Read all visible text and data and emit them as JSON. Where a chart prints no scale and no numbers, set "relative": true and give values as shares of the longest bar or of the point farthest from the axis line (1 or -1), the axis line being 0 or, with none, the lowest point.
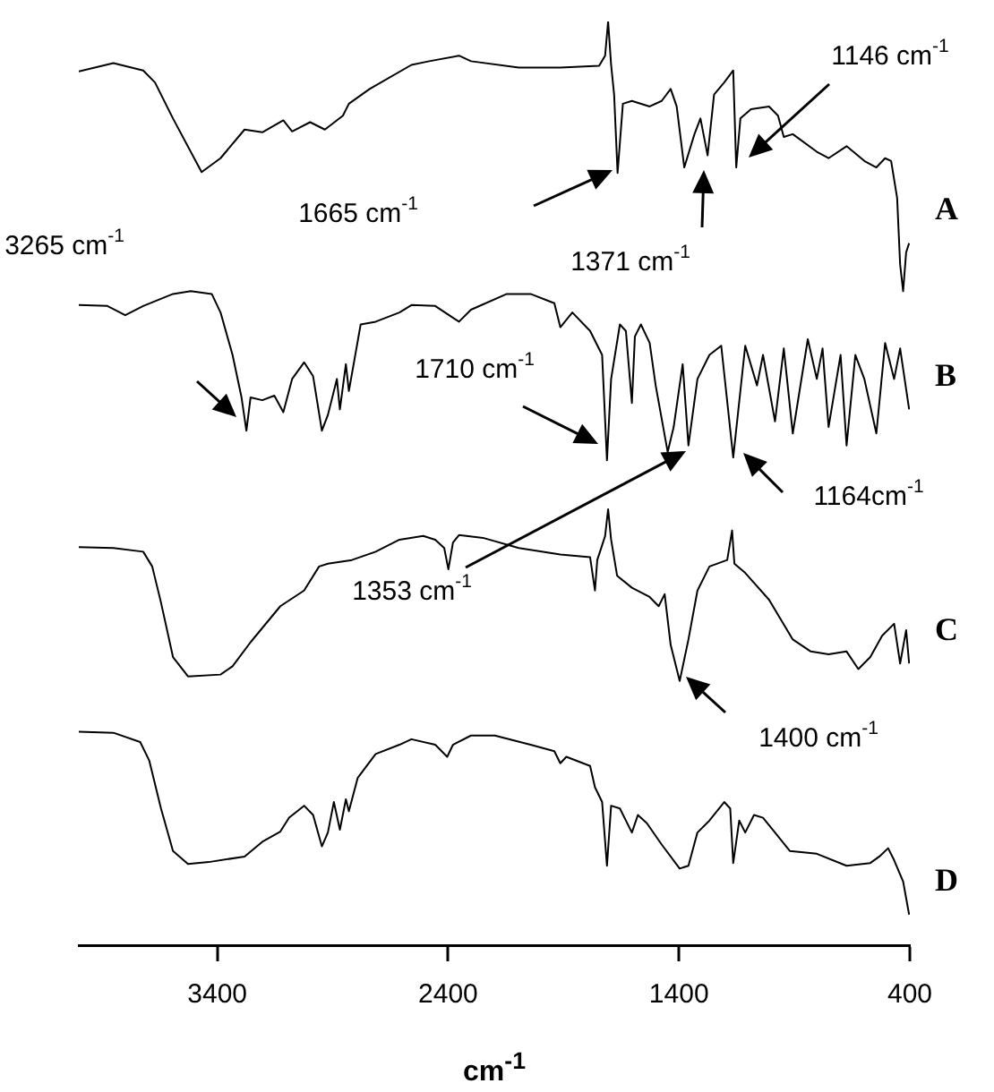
{
  "chart_data": {
    "type": "line",
    "xlabel": "cm$^{-1}$",
    "relative": true,
    "xlim": [
      4000,
      400
    ],
    "xticks": [
      3400,
      2400,
      1400,
      400
    ],
    "tick_labels": "x",
    "marker": "none",
    "line_style": "solid",
    "series": [
      {
        "name": "A",
        "color": "#000000",
        "x": [
          4000,
          3850,
          3721,
          3670,
          3592,
          3468,
          3386,
          3282,
          3205,
          3114,
          3076,
          2998,
          2934,
          2856,
          2830,
          2740,
          2559,
          2482,
          2353,
          2301,
          2094,
          1914,
          1746,
          1720,
          1707,
          1694,
          1681,
          1666,
          1643,
          1604,
          1527,
          1475,
          1436,
          1410,
          1377,
          1333,
          1307,
          1276,
          1248,
          1204,
          1165,
          1152,
          1134,
          1088,
          1010,
          971,
          946,
          907,
          803,
          752,
          674,
          597,
          545,
          507,
          481,
          455,
          442,
          429,
          416,
          403
        ],
        "values": [
          0.946,
          0.955,
          0.947,
          0.934,
          0.895,
          0.837,
          0.852,
          0.883,
          0.88,
          0.893,
          0.881,
          0.891,
          0.883,
          0.898,
          0.911,
          0.927,
          0.953,
          0.957,
          0.963,
          0.957,
          0.95,
          0.95,
          0.952,
          0.963,
          1.0,
          0.953,
          0.921,
          0.836,
          0.911,
          0.914,
          0.908,
          0.914,
          0.927,
          0.908,
          0.842,
          0.878,
          0.895,
          0.855,
          0.921,
          0.934,
          0.947,
          0.842,
          0.895,
          0.905,
          0.908,
          0.898,
          0.875,
          0.878,
          0.859,
          0.852,
          0.865,
          0.849,
          0.842,
          0.852,
          0.849,
          0.809,
          0.737,
          0.708,
          0.75,
          0.76
        ]
      },
      {
        "name": "B",
        "color": "#000000",
        "x": [
          4000,
          3876,
          3799,
          3721,
          3592,
          3515,
          3424,
          3386,
          3334,
          3295,
          3274,
          3256,
          3205,
          3153,
          3114,
          3076,
          3024,
          2985,
          2947,
          2921,
          2882,
          2869,
          2843,
          2830,
          2779,
          2714,
          2611,
          2559,
          2456,
          2353,
          2301,
          2146,
          2043,
          1940,
          1914,
          1862,
          1785,
          1733,
          1712,
          1694,
          1656,
          1630,
          1604,
          1591,
          1565,
          1527,
          1501,
          1449,
          1423,
          1384,
          1359,
          1320,
          1268,
          1217,
          1165,
          1113,
          1062,
          1036,
          984,
          946,
          907,
          842,
          803,
          778,
          752,
          700,
          674,
          636,
          597,
          545,
          507,
          468,
          442,
          403
        ],
        "values": [
          0.693,
          0.692,
          0.682,
          0.692,
          0.705,
          0.708,
          0.705,
          0.685,
          0.639,
          0.593,
          0.557,
          0.593,
          0.59,
          0.595,
          0.577,
          0.613,
          0.631,
          0.616,
          0.557,
          0.574,
          0.613,
          0.58,
          0.629,
          0.6,
          0.672,
          0.675,
          0.685,
          0.693,
          0.692,
          0.675,
          0.688,
          0.705,
          0.705,
          0.695,
          0.669,
          0.685,
          0.665,
          0.639,
          0.525,
          0.613,
          0.672,
          0.665,
          0.587,
          0.659,
          0.672,
          0.652,
          0.606,
          0.534,
          0.561,
          0.629,
          0.541,
          0.613,
          0.639,
          0.649,
          0.528,
          0.649,
          0.606,
          0.639,
          0.567,
          0.646,
          0.554,
          0.656,
          0.613,
          0.646,
          0.561,
          0.639,
          0.541,
          0.639,
          0.613,
          0.554,
          0.652,
          0.613,
          0.646,
          0.58
        ]
      },
      {
        "name": "C",
        "color": "#000000",
        "x": [
          4000,
          3850,
          3721,
          3682,
          3644,
          3592,
          3527,
          3386,
          3334,
          3256,
          3127,
          3024,
          2959,
          2921,
          2817,
          2714,
          2611,
          2508,
          2456,
          2417,
          2399,
          2379,
          2353,
          2249,
          2094,
          1914,
          1785,
          1764,
          1754,
          1720,
          1707,
          1694,
          1668,
          1604,
          1527,
          1488,
          1462,
          1436,
          1397,
          1359,
          1320,
          1268,
          1191,
          1170,
          1160,
          1113,
          1010,
          907,
          829,
          752,
          674,
          623,
          571,
          520,
          468,
          442,
          416,
          403
        ],
        "values": [
          0.431,
          0.43,
          0.426,
          0.41,
          0.371,
          0.312,
          0.291,
          0.293,
          0.302,
          0.328,
          0.367,
          0.384,
          0.41,
          0.413,
          0.417,
          0.426,
          0.439,
          0.443,
          0.439,
          0.43,
          0.407,
          0.436,
          0.444,
          0.441,
          0.43,
          0.423,
          0.42,
          0.384,
          0.417,
          0.443,
          0.472,
          0.439,
          0.4,
          0.387,
          0.377,
          0.367,
          0.38,
          0.325,
          0.286,
          0.331,
          0.384,
          0.41,
          0.417,
          0.449,
          0.413,
          0.403,
          0.374,
          0.331,
          0.318,
          0.315,
          0.318,
          0.299,
          0.312,
          0.335,
          0.348,
          0.305,
          0.341,
          0.305
        ]
      },
      {
        "name": "D",
        "color": "#000000",
        "x": [
          4000,
          3850,
          3734,
          3695,
          3644,
          3592,
          3527,
          3437,
          3282,
          3205,
          3127,
          3089,
          3024,
          2985,
          2947,
          2921,
          2895,
          2869,
          2843,
          2830,
          2792,
          2714,
          2611,
          2559,
          2456,
          2404,
          2379,
          2301,
          2198,
          2043,
          1940,
          1914,
          1888,
          1785,
          1764,
          1733,
          1712,
          1694,
          1656,
          1604,
          1578,
          1539,
          1475,
          1397,
          1359,
          1320,
          1268,
          1204,
          1178,
          1165,
          1139,
          1113,
          1075,
          1036,
          984,
          920,
          803,
          674,
          571,
          532,
          494,
          468,
          429,
          403
        ],
        "values": [
          0.231,
          0.23,
          0.22,
          0.2,
          0.148,
          0.102,
          0.088,
          0.09,
          0.096,
          0.112,
          0.123,
          0.138,
          0.151,
          0.141,
          0.107,
          0.122,
          0.155,
          0.125,
          0.158,
          0.145,
          0.181,
          0.207,
          0.217,
          0.223,
          0.217,
          0.204,
          0.217,
          0.227,
          0.227,
          0.217,
          0.21,
          0.197,
          0.204,
          0.194,
          0.171,
          0.155,
          0.086,
          0.151,
          0.148,
          0.122,
          0.141,
          0.132,
          0.109,
          0.083,
          0.086,
          0.122,
          0.135,
          0.155,
          0.148,
          0.089,
          0.135,
          0.122,
          0.141,
          0.138,
          0.122,
          0.102,
          0.099,
          0.086,
          0.089,
          0.096,
          0.105,
          0.092,
          0.069,
          0.033
        ]
      }
    ],
    "annotations": [
      "1665 cm$^{-1}$",
      "1371 cm$^{-1}$",
      "1146 cm$^{-1}$",
      "3265 cm$^{-1}$",
      "1710 cm$^{-1}$",
      "1353 cm$^{-1}$",
      "1164cm$^{-1}$",
      "1400 cm$^{-1}$"
    ]
  }
}
